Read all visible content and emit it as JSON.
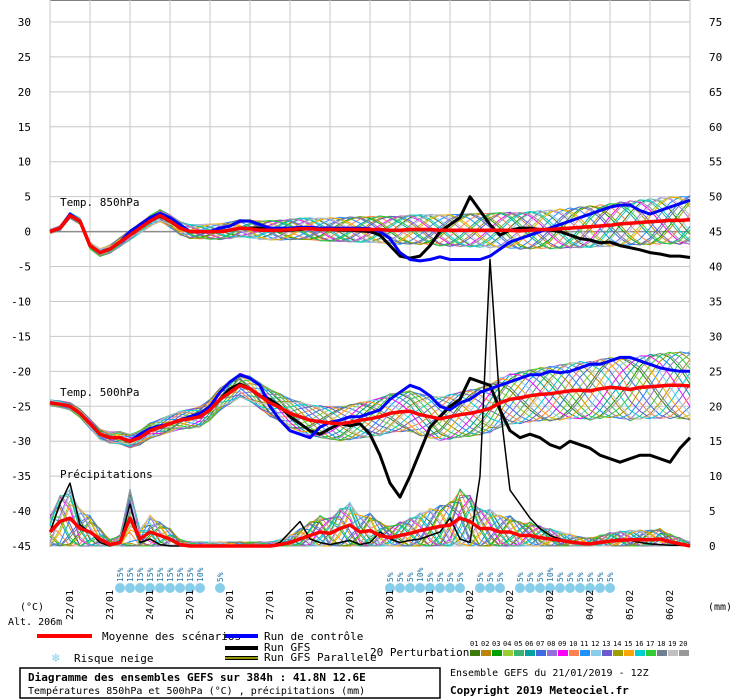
{
  "chart_data": {
    "type": "line",
    "title": "Diagramme des ensembles GEFS sur 384h : 41.8N 12.6E",
    "subtitle": "Températures 850hPa et 500hPa (°C) , précipitations (mm)",
    "left_axis": {
      "unit": "(°C)",
      "ylim": [
        -45,
        30
      ],
      "ticks": [
        30,
        25,
        20,
        15,
        10,
        5,
        0,
        -5,
        -10,
        -15,
        -20,
        -25,
        -30,
        -35,
        -40,
        -45
      ]
    },
    "right_axis": {
      "unit": "(mm)",
      "ylim": [
        0,
        75
      ],
      "ticks": [
        75,
        70,
        65,
        60,
        55,
        50,
        45,
        40,
        35,
        30,
        25,
        20,
        15,
        10,
        5,
        0
      ]
    },
    "x_ticks": [
      "22/01",
      "23/01",
      "24/01",
      "25/01",
      "26/01",
      "27/01",
      "28/01",
      "29/01",
      "30/01",
      "31/01",
      "01/02",
      "02/02",
      "03/02",
      "04/02",
      "05/02",
      "06/02"
    ],
    "altitude": "Alt. 206m",
    "section_labels": {
      "t850": "Temp. 850hPa",
      "t500": "Temp. 500hPa",
      "precip": "Précipitations"
    },
    "x_hours": [
      0,
      6,
      12,
      18,
      24,
      30,
      36,
      42,
      48,
      54,
      60,
      66,
      72,
      78,
      84,
      90,
      96,
      102,
      108,
      114,
      120,
      126,
      132,
      138,
      144,
      150,
      156,
      162,
      168,
      174,
      180,
      186,
      192,
      198,
      204,
      210,
      216,
      222,
      228,
      234,
      240,
      246,
      252,
      258,
      264,
      270,
      276,
      282,
      288,
      294,
      300,
      306,
      312,
      318,
      324,
      330,
      336,
      342,
      348,
      354,
      360,
      366,
      372,
      378,
      384
    ],
    "series": [
      {
        "name": "Moyenne des scénarios",
        "group": "t850",
        "color": "#ff0000",
        "values": [
          0,
          0.5,
          2.3,
          1.5,
          -2,
          -3,
          -2.5,
          -1.5,
          -0.5,
          0.5,
          1.5,
          2.3,
          1.5,
          0.5,
          0,
          0,
          0,
          0,
          0.2,
          0.5,
          0.4,
          0.2,
          0.2,
          0.2,
          0.3,
          0.4,
          0.4,
          0.3,
          0.3,
          0.3,
          0.3,
          0.3,
          0.3,
          0.3,
          0.2,
          0.2,
          0.3,
          0.3,
          0.3,
          0.2,
          0.2,
          0.2,
          0.2,
          0.2,
          0.2,
          0.2,
          0.2,
          0.1,
          0.2,
          0.3,
          0.3,
          0.4,
          0.5,
          0.6,
          0.7,
          0.8,
          0.9,
          1.1,
          1.2,
          1.3,
          1.4,
          1.5,
          1.6,
          1.6,
          1.7
        ]
      },
      {
        "name": "Run de contrôle",
        "group": "t850",
        "color": "#0000ff",
        "values": [
          0,
          0.5,
          2.5,
          1.5,
          -2,
          -3,
          -2.5,
          -1.5,
          0,
          1,
          2,
          2.6,
          2,
          1,
          0,
          0,
          0,
          0.5,
          0.8,
          1.5,
          1.5,
          1,
          0.5,
          0.5,
          0.5,
          0.6,
          0.6,
          0.5,
          0.5,
          0.5,
          0.5,
          0.5,
          0.4,
          0,
          -1,
          -3,
          -4,
          -4.2,
          -4,
          -3.6,
          -4,
          -4,
          -4,
          -4,
          -3.5,
          -2.5,
          -1.5,
          -1,
          -0.5,
          0,
          0.5,
          1,
          1.5,
          2,
          2.5,
          3,
          3.5,
          3.8,
          3.8,
          3,
          2.5,
          3,
          3.5,
          4,
          4.5
        ]
      },
      {
        "name": "Run GFS",
        "group": "t850",
        "color": "#000000",
        "values": [
          0,
          0.5,
          2.4,
          1.5,
          -2,
          -3,
          -2.5,
          -1.5,
          -0.5,
          0.5,
          1.5,
          2.2,
          1.5,
          0.5,
          0,
          0,
          0,
          0,
          0.2,
          0.5,
          0.5,
          0.5,
          0.2,
          0.1,
          0.2,
          0.3,
          0.4,
          0.3,
          0.3,
          0.2,
          0.2,
          0.1,
          0,
          -0.5,
          -2,
          -3.5,
          -3.8,
          -3.5,
          -2,
          0,
          1,
          2,
          5,
          3,
          1,
          -0.5,
          0.2,
          0.5,
          0.5,
          0.3,
          0.2,
          0,
          -0.5,
          -1,
          -1.2,
          -1.6,
          -1.5,
          -2,
          -2.3,
          -2.6,
          -3,
          -3.2,
          -3.5,
          -3.5,
          -3.7
        ]
      },
      {
        "name": "Moyenne des scénarios",
        "group": "t500",
        "color": "#ff0000",
        "values": [
          -24.5,
          -24.7,
          -25,
          -26,
          -27.5,
          -29,
          -29.5,
          -29.5,
          -30,
          -29.5,
          -28.5,
          -28,
          -27.5,
          -27,
          -26.8,
          -26.5,
          -25.5,
          -24,
          -23,
          -22,
          -22.5,
          -23.5,
          -24.5,
          -25.2,
          -26,
          -26.5,
          -27,
          -27.2,
          -27.4,
          -27.5,
          -27.3,
          -27,
          -26.8,
          -26.5,
          -26,
          -25.8,
          -25.7,
          -26.2,
          -26.5,
          -26.8,
          -26.5,
          -26.2,
          -26,
          -25.7,
          -25.3,
          -24.5,
          -24,
          -23.8,
          -23.5,
          -23.3,
          -23.2,
          -23,
          -22.8,
          -22.7,
          -22.8,
          -22.5,
          -22.3,
          -22.4,
          -22.6,
          -22.3,
          -22.2,
          -22.1,
          -22,
          -22,
          -22.1
        ]
      },
      {
        "name": "Run de contrôle",
        "group": "t500",
        "color": "#0000ff",
        "values": [
          -24.5,
          -24.7,
          -25,
          -26,
          -27.5,
          -29,
          -29.5,
          -29.5,
          -30,
          -29,
          -28.2,
          -27.8,
          -27.5,
          -27,
          -26.5,
          -26,
          -25,
          -23,
          -21.5,
          -20.5,
          -21,
          -22,
          -25,
          -27,
          -28.5,
          -29,
          -29.5,
          -28,
          -27.3,
          -27,
          -26.5,
          -26.5,
          -26,
          -25.5,
          -24,
          -23,
          -22,
          -22.5,
          -23.5,
          -25,
          -25.5,
          -24.5,
          -24,
          -23,
          -22.5,
          -22,
          -21.5,
          -21,
          -20.5,
          -20.5,
          -20,
          -20.2,
          -20,
          -19.5,
          -19,
          -19,
          -18.5,
          -18,
          -18,
          -18.5,
          -19,
          -19.5,
          -19.8,
          -20,
          -20
        ]
      },
      {
        "name": "Run GFS",
        "group": "t500",
        "color": "#000000",
        "values": [
          -24.5,
          -24.7,
          -25,
          -26,
          -27.5,
          -29,
          -29.5,
          -29.5,
          -30,
          -29.5,
          -28.5,
          -28,
          -27.5,
          -27,
          -26.5,
          -26,
          -25.5,
          -24,
          -22.5,
          -21.8,
          -22.5,
          -23.5,
          -24,
          -25,
          -26.5,
          -27.5,
          -28.5,
          -29,
          -28.2,
          -27.5,
          -27.8,
          -27.5,
          -29,
          -32,
          -36,
          -38,
          -35,
          -31.5,
          -28,
          -26.5,
          -25,
          -24,
          -21,
          -21.5,
          -22,
          -25.5,
          -28.5,
          -29.5,
          -29,
          -29.5,
          -30.5,
          -31,
          -30,
          -30.5,
          -31,
          -32,
          -32.5,
          -33,
          -32.5,
          -32,
          -32,
          -32.5,
          -33,
          -31,
          -29.5
        ]
      },
      {
        "name": "Moyenne des scénarios",
        "group": "precip",
        "color": "#ff0000",
        "values": [
          2,
          3.5,
          4,
          2.5,
          2,
          1,
          0.2,
          0.5,
          4,
          1,
          2,
          1.5,
          1,
          0.2,
          0,
          0,
          0,
          0,
          0,
          0,
          0,
          0,
          0,
          0.2,
          0.5,
          1,
          1.5,
          2,
          1.8,
          2.5,
          3,
          2,
          2.2,
          1.5,
          1.2,
          1.5,
          1.8,
          2.2,
          2.5,
          2.8,
          3,
          4,
          3.5,
          2.5,
          2.5,
          2,
          2,
          1.5,
          1.5,
          1.2,
          1,
          0.8,
          0.6,
          0.4,
          0.3,
          0.5,
          0.7,
          0.8,
          0.9,
          0.9,
          0.9,
          1,
          0.6,
          0.3,
          0
        ]
      },
      {
        "name": "Run GFS",
        "group": "precip",
        "color": "#000000",
        "values": [
          2,
          6,
          9,
          3,
          2,
          0.5,
          0,
          0.5,
          6,
          0.5,
          1,
          0.2,
          0,
          0,
          0,
          0,
          0,
          0,
          0,
          0,
          0,
          0,
          0,
          0.5,
          2,
          3.5,
          1,
          0.5,
          0.2,
          0.5,
          0.8,
          0.2,
          0.5,
          2,
          1,
          0.5,
          0.8,
          1,
          1.5,
          2,
          4,
          1,
          0.5,
          10,
          41,
          20,
          8,
          6,
          4,
          2.5,
          1.5,
          1,
          0.5,
          0.3,
          0.2,
          0.5,
          0.8,
          1,
          0.8,
          0.5,
          0.3,
          0.2,
          0.1,
          0.1,
          0
        ]
      }
    ],
    "perturbations": {
      "count": 20,
      "labels": [
        "01",
        "02",
        "03",
        "04",
        "05",
        "06",
        "07",
        "08",
        "09",
        "10",
        "11",
        "12",
        "13",
        "14",
        "15",
        "16",
        "17",
        "18",
        "19",
        "20"
      ],
      "colors": [
        "#3b7a0b",
        "#b8860b",
        "#00a000",
        "#9acd32",
        "#3cb371",
        "#00a0a0",
        "#4169e1",
        "#9370db",
        "#ff00ff",
        "#ff7f50",
        "#1e90ff",
        "#87ceeb",
        "#6a5acd",
        "#9e9e00",
        "#ffa500",
        "#00ced1",
        "#32cd32",
        "#708090",
        "#c0c0c0",
        "#999999"
      ]
    },
    "snow_markers": [
      {
        "hour": 42,
        "label": "15%"
      },
      {
        "hour": 48,
        "label": "15%"
      },
      {
        "hour": 54,
        "label": "15%"
      },
      {
        "hour": 60,
        "label": "15%"
      },
      {
        "hour": 66,
        "label": "15%"
      },
      {
        "hour": 72,
        "label": "15%"
      },
      {
        "hour": 78,
        "label": "15%"
      },
      {
        "hour": 84,
        "label": "15%"
      },
      {
        "hour": 90,
        "label": "10%"
      },
      {
        "hour": 102,
        "label": "5%"
      },
      {
        "hour": 204,
        "label": "5%"
      },
      {
        "hour": 210,
        "label": "5%"
      },
      {
        "hour": 216,
        "label": "5%"
      },
      {
        "hour": 222,
        "label": "10%"
      },
      {
        "hour": 228,
        "label": "5%"
      },
      {
        "hour": 234,
        "label": "5%"
      },
      {
        "hour": 240,
        "label": "5%"
      },
      {
        "hour": 246,
        "label": "5%"
      },
      {
        "hour": 258,
        "label": "5%"
      },
      {
        "hour": 264,
        "label": "5%"
      },
      {
        "hour": 270,
        "label": "5%"
      },
      {
        "hour": 282,
        "label": "5%"
      },
      {
        "hour": 288,
        "label": "5%"
      },
      {
        "hour": 294,
        "label": "5%"
      },
      {
        "hour": 300,
        "label": "10%"
      },
      {
        "hour": 306,
        "label": "5%"
      },
      {
        "hour": 312,
        "label": "5%"
      },
      {
        "hour": 318,
        "label": "5%"
      },
      {
        "hour": 324,
        "label": "5%"
      },
      {
        "hour": 330,
        "label": "5%"
      },
      {
        "hour": 336,
        "label": "5%"
      }
    ]
  },
  "legend": {
    "mean": "Moyenne des scénarios",
    "snow": "Risque neige",
    "control": "Run de contrôle",
    "gfs": "Run GFS",
    "gfs_parallel": "Run GFS Parallele",
    "perturbations": "20 Perturbations",
    "colors": {
      "mean": "#ff0000",
      "control": "#0000ff",
      "gfs": "#000000",
      "gfs_parallel": "#000000",
      "gfs_parallel_inner": "#c8c800",
      "snow": "#87ceeb"
    }
  },
  "footer": {
    "title": "Diagramme des ensembles GEFS sur 384h : 41.8N 12.6E",
    "subtitle": "Températures 850hPa et 500hPa (°C) , précipitations (mm)",
    "run": "Ensemble GEFS du 21/01/2019 - 12Z",
    "copyright": "Copyright 2019 Meteociel.fr"
  }
}
